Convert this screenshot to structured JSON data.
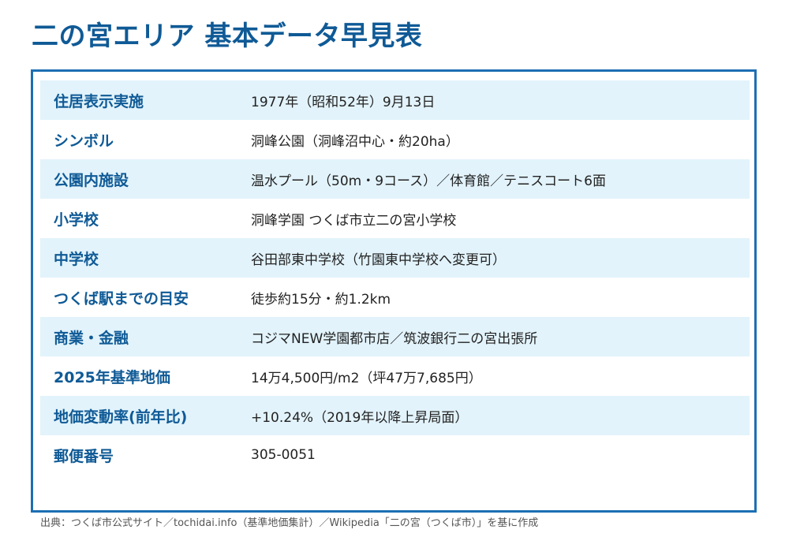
{
  "title": "二の宮エリア 基本データ早見表",
  "rows": [
    {
      "label": "住居表示実施",
      "value": "1977年（昭和52年）9月13日"
    },
    {
      "label": "シンボル",
      "value": "洞峰公園（洞峰沼中心・約20ha）"
    },
    {
      "label": "公園内施設",
      "value": "温水プール（50m・9コース）／体育館／テニスコート6面"
    },
    {
      "label": "小学校",
      "value": "洞峰学園 つくば市立二の宮小学校"
    },
    {
      "label": "中学校",
      "value": "谷田部東中学校（竹園東中学校へ変更可）"
    },
    {
      "label": "つくば駅までの目安",
      "value": "徒歩約15分・約1.2km"
    },
    {
      "label": "商業・金融",
      "value": "コジマNEW学園都市店／筑波銀行二の宮出張所"
    },
    {
      "label": "2025年基準地価",
      "value": "14万4,500円/m2（坪47万7,685円）"
    },
    {
      "label": "地価変動率(前年比)",
      "value": "+10.24%（2019年以降上昇局面）"
    },
    {
      "label": "郵便番号",
      "value": "305-0051"
    }
  ],
  "source": "出典：つくば市公式サイト／tochidai.info（基準地価集計）／Wikipedia「二の宮（つくば市）」を基に作成",
  "colors": {
    "accent": "#0f5a96",
    "border": "#1c6fb3",
    "row_shade": "#e2f3fb"
  }
}
